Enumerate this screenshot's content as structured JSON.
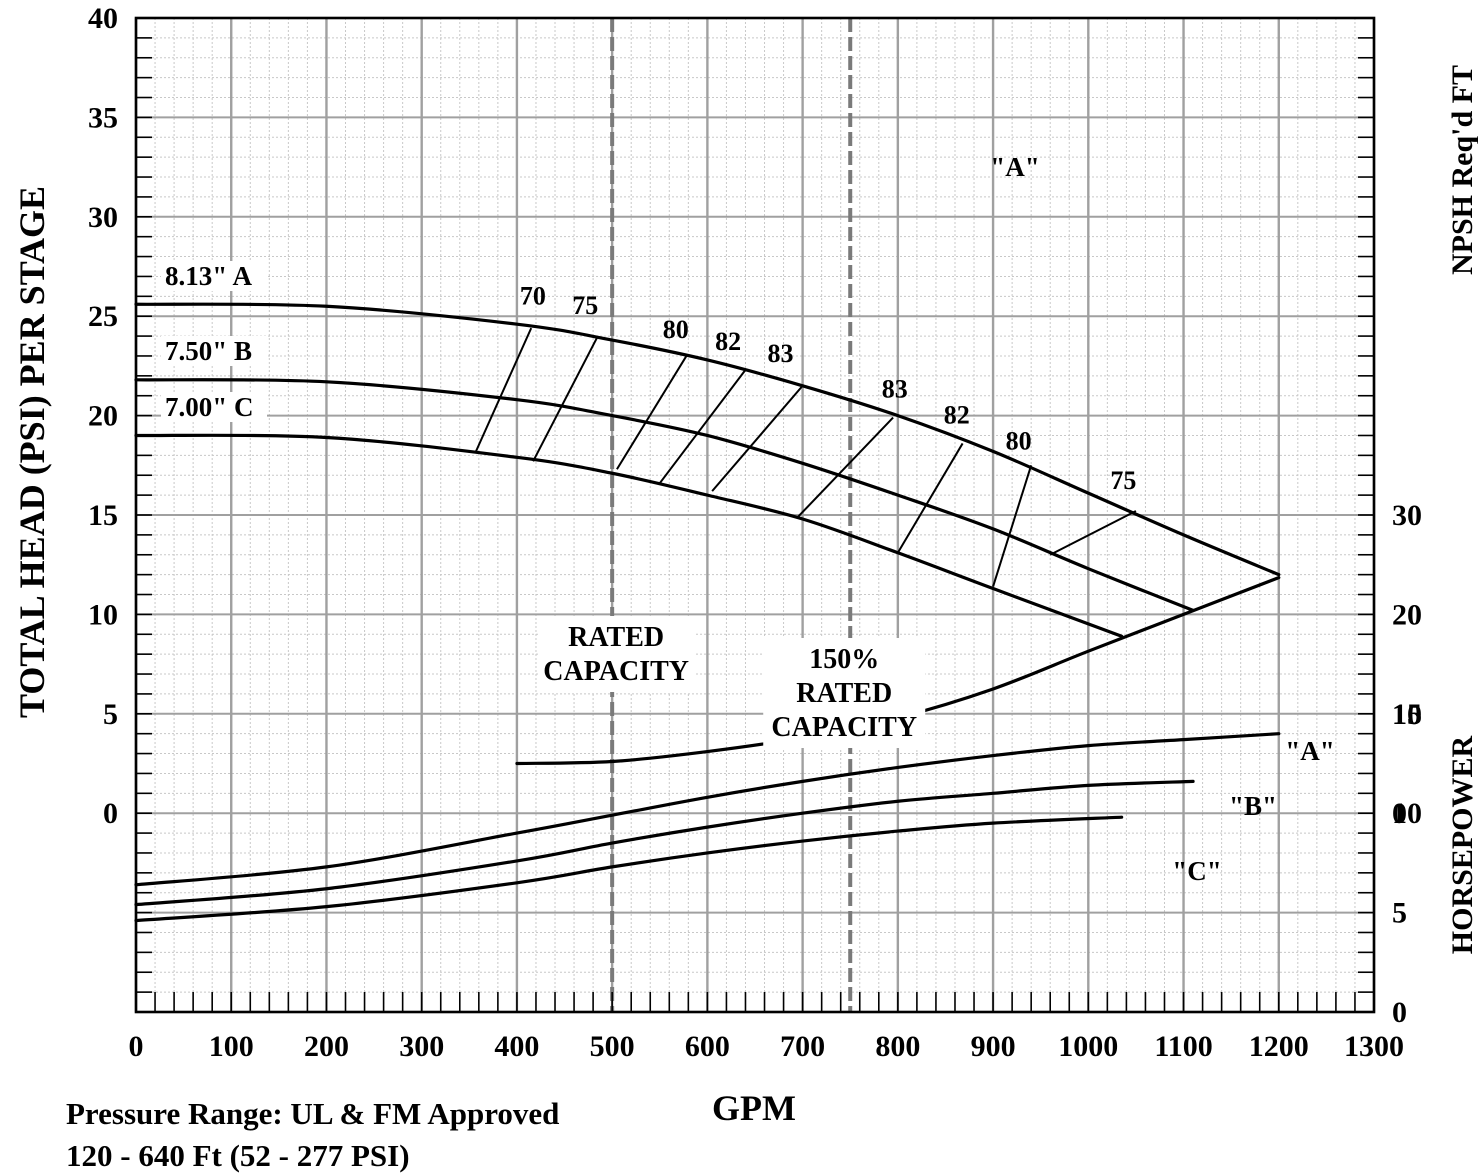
{
  "chart_data": {
    "type": "line",
    "title": "",
    "xlabel": "GPM",
    "ylabel": "TOTAL HEAD  (PSI)   PER STAGE",
    "y2label_npsh": "NPSH Req'd   FT",
    "y2label_hp": "HORSEPOWER",
    "xlim": [
      0,
      1300
    ],
    "ylim": [
      -10,
      40
    ],
    "x_ticks": [
      "0",
      "100",
      "200",
      "300",
      "400",
      "500",
      "600",
      "700",
      "800",
      "900",
      "1000",
      "1100",
      "1200",
      "1300"
    ],
    "y_ticks": [
      {
        "v": 40,
        "t": "40"
      },
      {
        "v": 35,
        "t": "35"
      },
      {
        "v": 30,
        "t": "30"
      },
      {
        "v": 25,
        "t": "25"
      },
      {
        "v": 20,
        "t": "20"
      },
      {
        "v": 15,
        "t": "15"
      },
      {
        "v": 10,
        "t": "10"
      },
      {
        "v": 5,
        "t": "5"
      },
      {
        "v": 0,
        "t": "0"
      }
    ],
    "npsh_ticks": [
      {
        "v": 30,
        "t": "30"
      },
      {
        "v": 20,
        "t": "20"
      },
      {
        "v": 10,
        "t": "10"
      },
      {
        "v": 0,
        "t": "0"
      }
    ],
    "hp_ticks": [
      {
        "v": 15,
        "t": "15"
      },
      {
        "v": 10,
        "t": "10"
      },
      {
        "v": 5,
        "t": "5"
      },
      {
        "v": 0,
        "t": "0"
      }
    ],
    "head_series": [
      {
        "name": "8.13\" A",
        "x": [
          0,
          200,
          400,
          500,
          600,
          700,
          800,
          900,
          1000,
          1100,
          1200
        ],
        "y": [
          25.6,
          25.5,
          24.6,
          23.8,
          22.8,
          21.5,
          20.0,
          18.2,
          16.1,
          14.0,
          12.0
        ]
      },
      {
        "name": "7.50\" B",
        "x": [
          0,
          200,
          400,
          500,
          600,
          700,
          800,
          900,
          1000,
          1110
        ],
        "y": [
          21.8,
          21.7,
          20.8,
          20.0,
          19.0,
          17.6,
          16.0,
          14.3,
          12.3,
          10.2
        ]
      },
      {
        "name": "7.00\" C",
        "x": [
          0,
          200,
          400,
          500,
          600,
          700,
          800,
          900,
          1035
        ],
        "y": [
          19.0,
          18.9,
          17.9,
          17.1,
          16.0,
          14.8,
          13.1,
          11.3,
          8.9
        ]
      }
    ],
    "npsh_series": [
      {
        "name": "\"A\"",
        "x": [
          400,
          500,
          600,
          700,
          800,
          900,
          1000,
          1100,
          1200
        ],
        "y": [
          5.0,
          5.2,
          6.2,
          7.6,
          9.6,
          12.5,
          16.3,
          20.0,
          23.7
        ]
      }
    ],
    "hp_series": [
      {
        "name": "\"A\"",
        "x": [
          0,
          200,
          400,
          500,
          600,
          700,
          800,
          900,
          1000,
          1100,
          1200
        ],
        "y": [
          6.4,
          7.3,
          9.0,
          9.9,
          10.8,
          11.6,
          12.3,
          12.9,
          13.4,
          13.7,
          14.0
        ]
      },
      {
        "name": "\"B\"",
        "x": [
          0,
          200,
          400,
          500,
          600,
          700,
          800,
          900,
          1000,
          1110
        ],
        "y": [
          5.4,
          6.2,
          7.6,
          8.5,
          9.3,
          10.0,
          10.6,
          11.0,
          11.4,
          11.6
        ]
      },
      {
        "name": "\"C\"",
        "x": [
          0,
          200,
          400,
          500,
          600,
          700,
          800,
          900,
          1035
        ],
        "y": [
          4.6,
          5.3,
          6.5,
          7.3,
          8.0,
          8.6,
          9.1,
          9.5,
          9.8
        ]
      }
    ],
    "efficiency_labels": [
      {
        "t": "70",
        "x": 400,
        "y": 25.5
      },
      {
        "t": "75",
        "x": 455,
        "y": 25.0
      },
      {
        "t": "80",
        "x": 550,
        "y": 23.8
      },
      {
        "t": "82",
        "x": 605,
        "y": 23.2
      },
      {
        "t": "83",
        "x": 660,
        "y": 22.6
      },
      {
        "t": "83",
        "x": 780,
        "y": 20.8
      },
      {
        "t": "82",
        "x": 845,
        "y": 19.5
      },
      {
        "t": "80",
        "x": 910,
        "y": 18.2
      },
      {
        "t": "75",
        "x": 1020,
        "y": 16.2
      }
    ],
    "efficiency_ticks": [
      {
        "x1": 357,
        "y1": 18.2,
        "x2": 415,
        "y2": 24.4
      },
      {
        "x1": 417,
        "y1": 17.7,
        "x2": 485,
        "y2": 24.0
      },
      {
        "x1": 505,
        "y1": 17.3,
        "x2": 578,
        "y2": 23.0
      },
      {
        "x1": 550,
        "y1": 16.6,
        "x2": 640,
        "y2": 22.3
      },
      {
        "x1": 605,
        "y1": 16.2,
        "x2": 700,
        "y2": 21.5
      },
      {
        "x1": 695,
        "y1": 14.9,
        "x2": 795,
        "y2": 19.9
      },
      {
        "x1": 800,
        "y1": 13.1,
        "x2": 868,
        "y2": 18.6
      },
      {
        "x1": 900,
        "y1": 11.4,
        "x2": 940,
        "y2": 17.5
      },
      {
        "x1": 960,
        "y1": 13.0,
        "x2": 1050,
        "y2": 15.2
      }
    ],
    "markers": [
      {
        "x": 500,
        "text": [
          "RATED",
          "CAPACITY"
        ]
      },
      {
        "x": 750,
        "text": [
          "150%",
          "RATED",
          "CAPACITY"
        ]
      }
    ],
    "grid": true,
    "legend": "none"
  },
  "footer": {
    "line1": "Pressure Range: UL & FM Approved",
    "line2": "120 - 640 Ft  (52 - 277 PSI)"
  }
}
